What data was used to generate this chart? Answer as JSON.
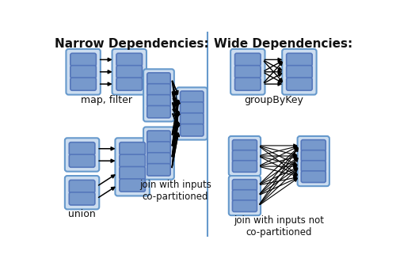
{
  "title_narrow": "Narrow Dependencies:",
  "title_wide": "Wide Dependencies:",
  "bg_color": "#ffffff",
  "outer_box_color": "#6699cc",
  "outer_box_fill": "#ccddf0",
  "inner_box_color": "#5577bb",
  "inner_box_fill": "#7799cc",
  "arrow_color": "#000000",
  "divider_color": "#6699cc",
  "label_map_filter": "map, filter",
  "label_union": "union",
  "label_join_co": "join with inputs\nco-partitioned",
  "label_groupbykey": "groupByKey",
  "label_join_notco": "join with inputs not\nco-partitioned"
}
